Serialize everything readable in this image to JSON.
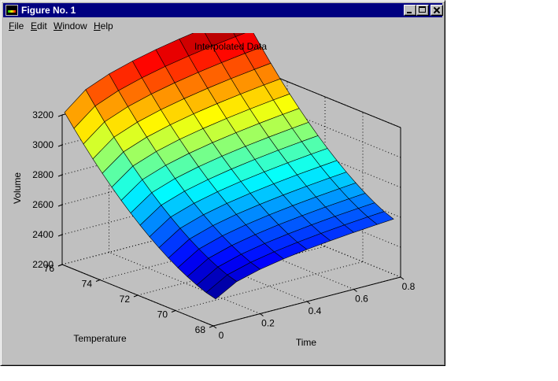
{
  "window": {
    "title": "Figure No. 1",
    "icon": "matlab-figure-icon",
    "controls": [
      "minimize-icon",
      "maximize-icon",
      "close-icon"
    ]
  },
  "menu": [
    {
      "key": "F",
      "rest": "ile"
    },
    {
      "key": "E",
      "rest": "dit"
    },
    {
      "key": "W",
      "rest": "indow"
    },
    {
      "key": "H",
      "rest": "elp"
    }
  ],
  "chart_data": {
    "type": "surface",
    "title": "Interpolated Data",
    "xlabel": "Time",
    "ylabel": "Temperature",
    "zlabel": "Volume",
    "x_ticks": [
      "0",
      "0.2",
      "0.4",
      "0.6",
      "0.8"
    ],
    "y_ticks": [
      "68",
      "70",
      "72",
      "74",
      "76"
    ],
    "z_ticks": [
      "2200",
      "2400",
      "2600",
      "2800",
      "3000",
      "3200"
    ],
    "xlim": [
      0,
      0.8
    ],
    "ylim": [
      68,
      76
    ],
    "zlim": [
      2200,
      3200
    ],
    "grid": true,
    "colormap": "jet",
    "grid_lines": 9,
    "time_values": [
      0.01,
      0.1,
      0.2,
      0.3,
      0.4,
      0.5,
      0.6,
      0.7,
      0.77
    ],
    "temperature_values": [
      68,
      68.5,
      69,
      69.5,
      70,
      70.5,
      71,
      71.5,
      72,
      72.5,
      73,
      73.5,
      74,
      74.5,
      75,
      75.5,
      76
    ]
  }
}
